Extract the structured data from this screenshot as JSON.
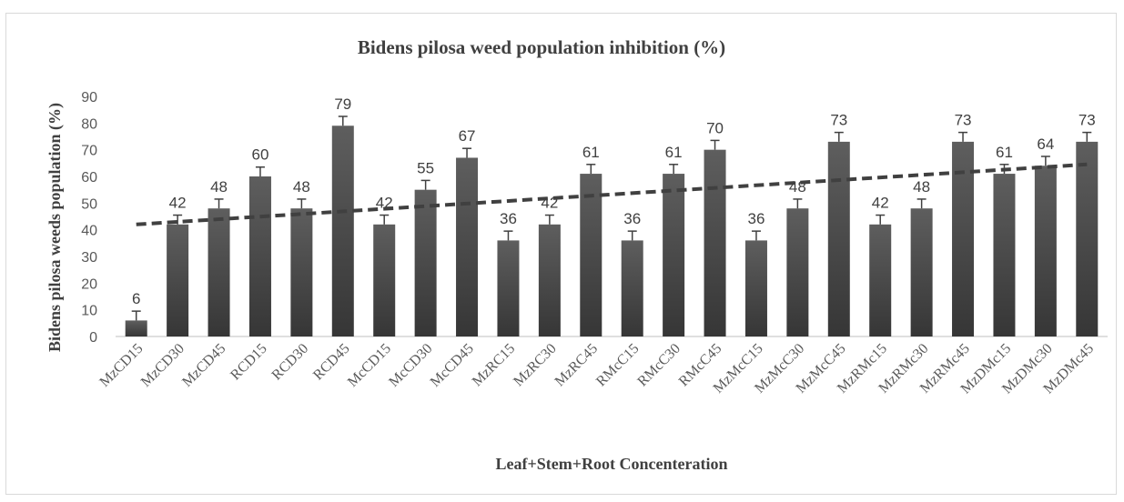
{
  "chart_data": {
    "type": "bar",
    "title": "Bidens pilosa weed population inhibition (%)",
    "xlabel": "Leaf+Stem+Root Concenteration",
    "ylabel": "Bidens  pilosa weeds population (%)",
    "ylim": [
      0,
      90
    ],
    "yticks": [
      0,
      10,
      20,
      30,
      40,
      50,
      60,
      70,
      80,
      90
    ],
    "categories": [
      "MzCD15",
      "MzCD30",
      "MzCD45",
      "RCD15",
      "RCD30",
      "RCD45",
      "McCD15",
      "McCD30",
      "McCD45",
      "MzRC15",
      "MzRC30",
      "MzRC45",
      "RMcC15",
      "RMcC30",
      "RMcC45",
      "MzMcC15",
      "MzMcC30",
      "MzMcC45",
      "MzRMc15",
      "MzRMc30",
      "MzRMc45",
      "MzDMc15",
      "MzDMc30",
      "MzDMc45"
    ],
    "values": [
      6,
      42,
      48,
      60,
      48,
      79,
      42,
      55,
      67,
      36,
      42,
      61,
      36,
      61,
      70,
      36,
      48,
      73,
      42,
      48,
      73,
      61,
      64,
      73
    ],
    "error": 3.5,
    "trendline": {
      "type": "linear",
      "start": 42,
      "end": 64.5
    },
    "grid": false,
    "legend": "none",
    "colors": {
      "bar_top": "#5a5a5a",
      "bar_bottom": "#3a3a3a",
      "trendline": "#404040",
      "axis": "#bfbfbf"
    }
  }
}
